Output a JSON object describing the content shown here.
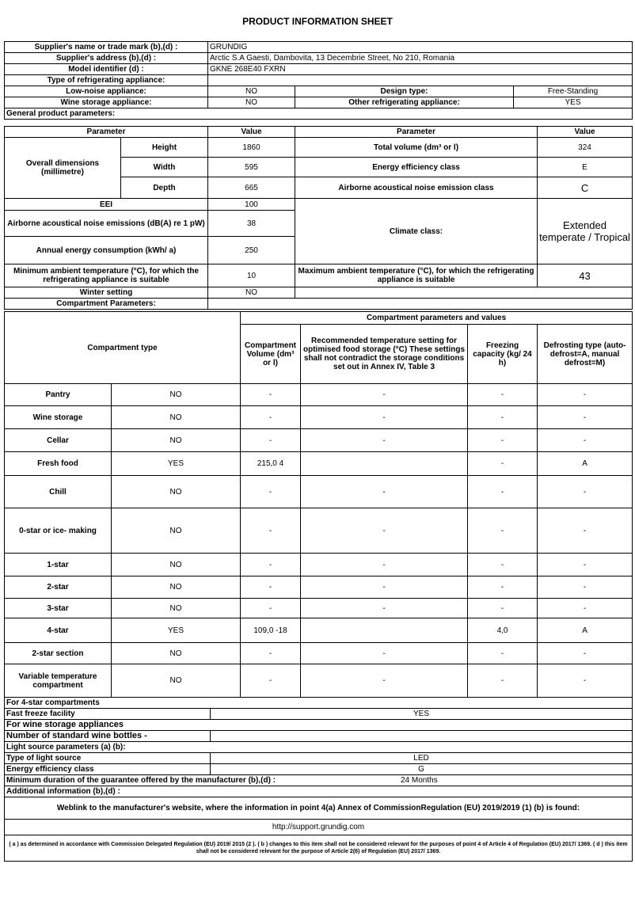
{
  "title": "PRODUCT INFORMATION SHEET",
  "supplier": {
    "name_label": "Supplier's name or trade mark (b),(d) :",
    "name": "GRUNDIG",
    "address_label": "Supplier's address (b),(d) :",
    "address": "Arctic S.A  Gaesti, Dambovita, 13 Decembrie Street, No 210, Romania",
    "model_label": "Model identifier (d) :",
    "model": "GKNE 268E40 FXRN",
    "type_label": "Type of refrigerating appliance:",
    "low_noise_label": "Low-noise appliance:",
    "low_noise": "NO",
    "design_label": "Design type:",
    "design": "Free-Standing",
    "wine_label": "Wine storage appliance:",
    "wine": "NO",
    "other_label": "Other refrigerating appliance:",
    "other": "YES"
  },
  "general": {
    "heading": "General product parameters:",
    "col_param": "Parameter",
    "col_value": "Value",
    "overall_label": "Overall dimensions (millimetre)",
    "height_label": "Height",
    "height": "1860",
    "width_label": "Width",
    "width": "595",
    "depth_label": "Depth",
    "depth": "665",
    "total_volume_label": "Total volume (dm³ or l)",
    "total_volume": "324",
    "energy_class_label": "Energy efficiency class",
    "energy_class": "E",
    "noise_class_label": "Airborne acoustical noise emission class",
    "noise_class": "C",
    "eei_label": "EEI",
    "eei": "100",
    "noise_label": "Airborne acoustical noise emissions (dB(A) re 1 pW)",
    "noise": "38",
    "annual_label": "Annual energy consumption (kWh/ a)",
    "annual": "250",
    "climate_label": "Climate class:",
    "climate": "Extended temperate / Tropical",
    "min_temp_label": "Minimum ambient temperature (°C), for which the refrigerating appliance is suitable",
    "min_temp": "10",
    "max_temp_label": "Maximum ambient temperature (°C), for which the refrigerating appliance is suitable",
    "max_temp": "43",
    "winter_label": "Winter setting",
    "winter": "NO"
  },
  "compartments": {
    "heading": "Compartment Parameters:",
    "group_header": "Compartment parameters and values",
    "col_type": "Compartment type",
    "col_volume": "Compartment Volume (dm³ or l)",
    "col_temp": "Recommended temperature setting for optimised food storage (°C) These settings shall not contradict the storage conditions set out in Annex IV, Table 3",
    "col_freezing": "Freezing capacity (kg/ 24 h)",
    "col_defrost": "Defrosting type (auto-defrost=A, manual defrost=M)",
    "rows": [
      {
        "name": "Pantry",
        "present": "NO",
        "volume": "-",
        "temp": "-",
        "freezing": "-",
        "defrost": "-"
      },
      {
        "name": "Wine storage",
        "present": "NO",
        "volume": "-",
        "temp": "-",
        "freezing": "-",
        "defrost": "-"
      },
      {
        "name": "Cellar",
        "present": "NO",
        "volume": "-",
        "temp": "-",
        "freezing": "-",
        "defrost": "-"
      },
      {
        "name": "Fresh food",
        "present": "YES",
        "volume": "215,0 4",
        "temp": "",
        "freezing": "-",
        "defrost": "A"
      },
      {
        "name": "Chill",
        "present": "NO",
        "volume": "-",
        "temp": "-",
        "freezing": "-",
        "defrost": "-"
      },
      {
        "name": "0-star or ice- making",
        "present": "NO",
        "volume": "-",
        "temp": "-",
        "freezing": "-",
        "defrost": "-"
      },
      {
        "name": "1-star",
        "present": "NO",
        "volume": "-",
        "temp": "-",
        "freezing": "-",
        "defrost": "-"
      },
      {
        "name": "2-star",
        "present": "NO",
        "volume": "-",
        "temp": "-",
        "freezing": "-",
        "defrost": "-"
      },
      {
        "name": "3-star",
        "present": "NO",
        "volume": "-",
        "temp": "-",
        "freezing": "-",
        "defrost": "-"
      },
      {
        "name": "4-star",
        "present": "YES",
        "volume": "109,0 -18",
        "temp": "",
        "freezing": "4,0",
        "defrost": "A"
      },
      {
        "name": "2-star section",
        "present": "NO",
        "volume": "-",
        "temp": "-",
        "freezing": "-",
        "defrost": "-"
      },
      {
        "name": "Variable temperature compartment",
        "present": "NO",
        "volume": "-",
        "temp": "-",
        "freezing": "-",
        "defrost": "-"
      }
    ]
  },
  "extra": {
    "four_star_heading": "For 4-star compartments",
    "fast_freeze_label": "Fast freeze facility",
    "fast_freeze": "YES",
    "wine_heading": "For wine storage appliances",
    "bottles_label": "Number of standard wine bottles -",
    "bottles": "",
    "light_heading": "Light source parameters (a) (b):",
    "light_type_label": "Type of light source",
    "light_type": "LED",
    "light_class_label": "Energy efficiency class",
    "light_class": "G",
    "guarantee_label": "Minimum duration of the guarantee offered by the manufacturer (b),(d) :",
    "guarantee": "24 Months",
    "additional_label": "Additional information (b),(d) :",
    "weblink_label": "Weblink to the manufacturer's website, where the information in point 4(a) Annex of CommissionRegulation (EU) 2019/2019 (1) (b) is found:",
    "url": "http://support.grundig.com",
    "footnote": "( a ) as determined in accordance with Commission Delegated Regulation (EU) 2019/ 2015 (2 ). ( b ) changes to this item shall not be considered relevant for the purposes of point 4 of Article 4 of Regulation (EU) 2017/ 1369. ( d ) this item shall not be considered relevant for the purpose of Article 2(6) of Regulation (EU) 2017/ 1369."
  }
}
